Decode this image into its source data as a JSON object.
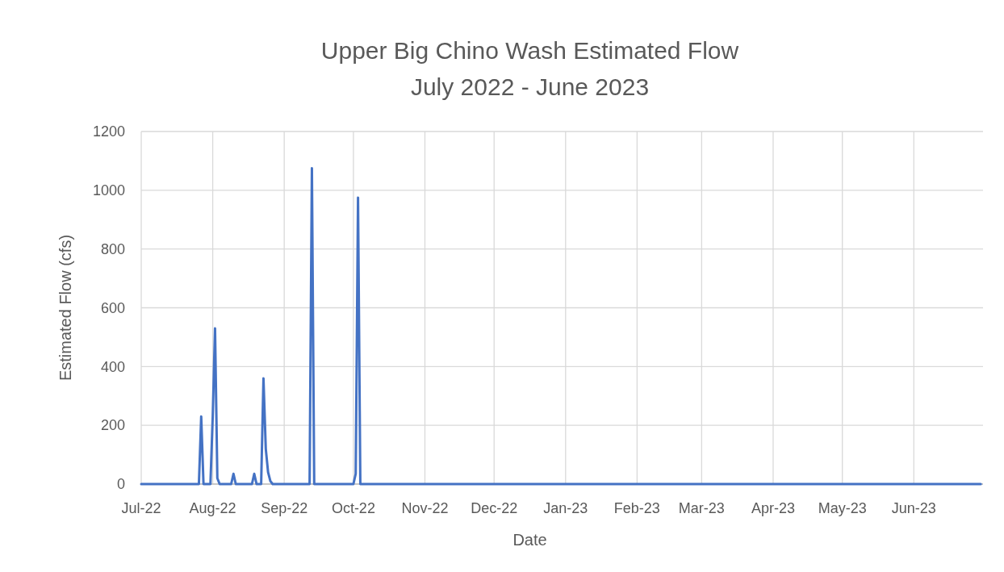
{
  "chart_data": {
    "type": "line",
    "title": "Upper Big Chino Wash Estimated Flow",
    "subtitle": "July 2022 - June 2023",
    "xlabel": "Date",
    "ylabel": "Estimated Flow (cfs)",
    "x": [
      "2022-07-01",
      "2022-07-26",
      "2022-07-27",
      "2022-07-28",
      "2022-07-31",
      "2022-08-01",
      "2022-08-02",
      "2022-08-03",
      "2022-08-04",
      "2022-08-09",
      "2022-08-10",
      "2022-08-11",
      "2022-08-18",
      "2022-08-19",
      "2022-08-20",
      "2022-08-22",
      "2022-08-23",
      "2022-08-24",
      "2022-08-25",
      "2022-08-26",
      "2022-08-27",
      "2022-09-12",
      "2022-09-13",
      "2022-09-14",
      "2022-10-01",
      "2022-10-02",
      "2022-10-03",
      "2022-10-04",
      "2023-06-30"
    ],
    "series": [
      {
        "color": "#4472c4",
        "values": [
          0,
          0,
          230,
          0,
          0,
          230,
          530,
          20,
          0,
          0,
          35,
          0,
          0,
          35,
          0,
          0,
          360,
          120,
          40,
          10,
          0,
          0,
          1075,
          0,
          0,
          35,
          975,
          0,
          0
        ]
      }
    ],
    "xlim": [
      "2022-07-01",
      "2023-07-01"
    ],
    "xticks": [
      {
        "value": "2022-07-01",
        "label": "Jul-22"
      },
      {
        "value": "2022-08-01",
        "label": "Aug-22"
      },
      {
        "value": "2022-09-01",
        "label": "Sep-22"
      },
      {
        "value": "2022-10-01",
        "label": "Oct-22"
      },
      {
        "value": "2022-11-01",
        "label": "Nov-22"
      },
      {
        "value": "2022-12-01",
        "label": "Dec-22"
      },
      {
        "value": "2023-01-01",
        "label": "Jan-23"
      },
      {
        "value": "2023-02-01",
        "label": "Feb-23"
      },
      {
        "value": "2023-03-01",
        "label": "Mar-23"
      },
      {
        "value": "2023-04-01",
        "label": "Apr-23"
      },
      {
        "value": "2023-05-01",
        "label": "May-23"
      },
      {
        "value": "2023-06-01",
        "label": "Jun-23"
      }
    ],
    "ylim": [
      0,
      1200
    ],
    "yticks": [
      0,
      200,
      400,
      600,
      800,
      1000,
      1200
    ],
    "grid": true,
    "marker": "none",
    "line_style": "solid"
  }
}
